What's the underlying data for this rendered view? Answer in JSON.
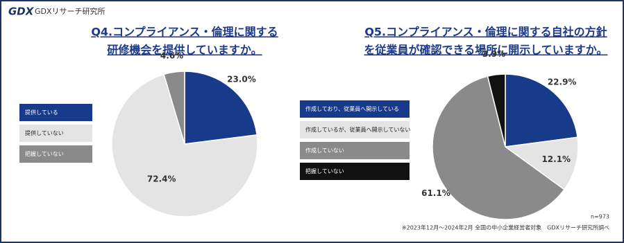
{
  "header": {
    "logo": "GDX",
    "brand": "GDXリサーチ研究所"
  },
  "chart_data": [
    {
      "type": "pie",
      "title": [
        "Q4.コンプライアンス・倫理に関する",
        "研修機会を提供していますか。"
      ],
      "categories": [
        "提供している",
        "提供していない",
        "把握していない"
      ],
      "values": [
        23.0,
        72.4,
        4.6
      ],
      "value_labels": [
        "23.0%",
        "72.4%",
        "4.6%"
      ],
      "colors": [
        "#173a8b",
        "#e4e4e4",
        "#8a8a8a"
      ]
    },
    {
      "type": "pie",
      "title": [
        "Q5.コンプライアンス・倫理に関する自社の方針",
        "を従業員が確認できる場所に開示していますか。"
      ],
      "categories": [
        "作成しており、従業員へ開示している",
        "作成しているが、従業員へ開示していない",
        "作成していない",
        "把握していない"
      ],
      "values": [
        22.9,
        12.1,
        61.1,
        3.9
      ],
      "value_labels": [
        "22.9%",
        "12.1%",
        "61.1%",
        "3.9%"
      ],
      "colors": [
        "#173a8b",
        "#e4e4e4",
        "#8a8a8a",
        "#111111"
      ]
    }
  ],
  "footer": {
    "sample": "n=973",
    "note": "※2023年12月～2024年2月 全国の中小企業経営者対象　GDXリサーチ研究所調べ"
  }
}
